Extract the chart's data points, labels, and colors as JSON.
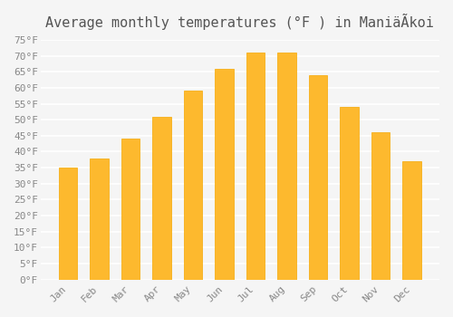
{
  "title": "Average monthly temperatures (°F ) in ManiäÃkoi",
  "months": [
    "Jan",
    "Feb",
    "Mar",
    "Apr",
    "May",
    "Jun",
    "Jul",
    "Aug",
    "Sep",
    "Oct",
    "Nov",
    "Dec"
  ],
  "values": [
    35,
    38,
    44,
    51,
    59,
    66,
    71,
    71,
    64,
    54,
    46,
    37
  ],
  "bar_color_face": "#FDB92E",
  "bar_color_edge": "#F5A800",
  "ylim": [
    0,
    75
  ],
  "yticks": [
    0,
    5,
    10,
    15,
    20,
    25,
    30,
    35,
    40,
    45,
    50,
    55,
    60,
    65,
    70,
    75
  ],
  "background_color": "#f5f5f5",
  "grid_color": "#ffffff",
  "tick_label_color": "#888888",
  "title_color": "#555555",
  "title_fontsize": 11
}
